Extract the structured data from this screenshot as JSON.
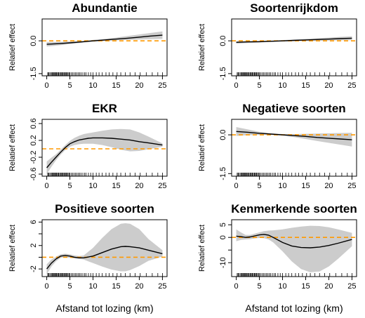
{
  "colors": {
    "band": "#cccccc",
    "line": "#000000",
    "reference": "#ff9900",
    "frame": "#000000"
  },
  "chart_data": [
    {
      "type": "line",
      "title": "Abundantie",
      "xlabel": "",
      "ylabel": "Relatief effect",
      "xlim": [
        -1,
        26
      ],
      "ylim": [
        -1.6,
        1.0
      ],
      "xticks": [
        0,
        5,
        10,
        15,
        20,
        25
      ],
      "xtick_labels": [
        "0",
        "5",
        "10",
        "15",
        "20",
        "25"
      ],
      "yticks": [
        -1.5,
        0.0
      ],
      "ytick_labels": [
        "-1.5",
        "0.0"
      ],
      "reference_line": 0,
      "x": [
        0,
        2.5,
        5,
        7.5,
        10,
        12.5,
        15,
        17.5,
        20,
        22.5,
        25
      ],
      "y": [
        -0.16,
        -0.13,
        -0.09,
        -0.05,
        0.0,
        0.04,
        0.08,
        0.12,
        0.17,
        0.22,
        0.26
      ],
      "lower": [
        -0.26,
        -0.21,
        -0.15,
        -0.09,
        -0.04,
        -0.01,
        0.02,
        0.04,
        0.06,
        0.08,
        0.09
      ],
      "upper": [
        -0.05,
        -0.05,
        -0.03,
        -0.01,
        0.04,
        0.09,
        0.15,
        0.22,
        0.29,
        0.36,
        0.43
      ],
      "rug": [
        0.2,
        0.4,
        0.5,
        0.8,
        1.0,
        1.2,
        1.3,
        1.5,
        1.7,
        1.8,
        2.0,
        2.1,
        2.3,
        2.5,
        2.6,
        2.8,
        3.0,
        3.2,
        3.4,
        3.5,
        3.7,
        3.9,
        4.0,
        4.2,
        4.4,
        4.6,
        4.8,
        5.0,
        5.3,
        5.6,
        5.9,
        6.2,
        6.5,
        6.8,
        7.1,
        7.4,
        7.8,
        8.2,
        8.5,
        9.0,
        9.5,
        10.0,
        10.7,
        11.3,
        12.0,
        12.8,
        13.5,
        14.3,
        15.2,
        16.0,
        17.0,
        18.0,
        19.1,
        20.2,
        21.5,
        22.8,
        24.0,
        25.0
      ]
    },
    {
      "type": "line",
      "title": "Soortenrijkdom",
      "xlabel": "",
      "ylabel": "Relatief effect",
      "xlim": [
        -1,
        26
      ],
      "ylim": [
        -1.6,
        1.0
      ],
      "xticks": [
        0,
        5,
        10,
        15,
        20,
        25
      ],
      "xtick_labels": [
        "0",
        "5",
        "10",
        "15",
        "20",
        "25"
      ],
      "yticks": [
        -1.5,
        0.0
      ],
      "ytick_labels": [
        "-1.5",
        "0.0"
      ],
      "reference_line": 0,
      "x": [
        0,
        2.5,
        5,
        7.5,
        10,
        12.5,
        15,
        17.5,
        20,
        22.5,
        25
      ],
      "y": [
        -0.07,
        -0.05,
        -0.04,
        -0.02,
        0.0,
        0.02,
        0.04,
        0.06,
        0.08,
        0.1,
        0.12
      ],
      "lower": [
        -0.13,
        -0.1,
        -0.08,
        -0.05,
        -0.03,
        -0.02,
        -0.01,
        0.0,
        0.01,
        0.02,
        0.03
      ],
      "upper": [
        -0.01,
        0.0,
        0.0,
        0.01,
        0.03,
        0.06,
        0.09,
        0.12,
        0.15,
        0.18,
        0.21
      ],
      "rug": [
        0.2,
        0.4,
        0.5,
        0.8,
        1.0,
        1.2,
        1.3,
        1.5,
        1.7,
        1.8,
        2.0,
        2.1,
        2.3,
        2.5,
        2.6,
        2.8,
        3.0,
        3.2,
        3.4,
        3.5,
        3.7,
        3.9,
        4.0,
        4.2,
        4.4,
        4.6,
        4.8,
        5.0,
        5.3,
        5.6,
        5.9,
        6.2,
        6.5,
        6.8,
        7.1,
        7.4,
        7.8,
        8.2,
        8.5,
        9.0,
        9.5,
        10.0,
        10.7,
        11.3,
        12.0,
        12.8,
        13.5,
        14.3,
        15.2,
        16.0,
        17.0,
        18.0,
        19.1,
        20.2,
        21.5,
        22.8,
        24.0,
        25.0
      ]
    },
    {
      "type": "line",
      "title": "EKR",
      "xlabel": "",
      "ylabel": "Relatief effect",
      "xlim": [
        -1,
        26
      ],
      "ylim": [
        -0.65,
        0.7
      ],
      "xticks": [
        0,
        5,
        10,
        15,
        20,
        25
      ],
      "xtick_labels": [
        "0",
        "5",
        "10",
        "15",
        "20",
        "25"
      ],
      "yticks": [
        -0.6,
        -0.2,
        0.2,
        0.6
      ],
      "ytick_labels": [
        "-0.6",
        "-0.2",
        "0.2",
        "0.6"
      ],
      "reference_line": 0,
      "x": [
        0,
        1,
        2,
        3,
        4,
        5,
        6,
        7,
        8,
        9,
        10,
        12,
        14,
        16,
        18,
        20,
        22,
        25
      ],
      "y": [
        -0.45,
        -0.32,
        -0.2,
        -0.08,
        0.03,
        0.12,
        0.17,
        0.21,
        0.23,
        0.25,
        0.26,
        0.26,
        0.25,
        0.23,
        0.21,
        0.17,
        0.14,
        0.09
      ],
      "lower": [
        -0.6,
        -0.43,
        -0.27,
        -0.14,
        -0.03,
        0.05,
        0.09,
        0.11,
        0.12,
        0.12,
        0.12,
        0.09,
        0.04,
        -0.02,
        -0.06,
        -0.05,
        -0.01,
        0.05
      ],
      "upper": [
        -0.3,
        -0.21,
        -0.13,
        -0.02,
        0.09,
        0.19,
        0.26,
        0.31,
        0.35,
        0.37,
        0.39,
        0.43,
        0.46,
        0.47,
        0.46,
        0.39,
        0.29,
        0.13
      ],
      "rug": [
        0.2,
        0.4,
        0.5,
        0.8,
        1.0,
        1.2,
        1.3,
        1.5,
        1.7,
        1.8,
        2.0,
        2.1,
        2.3,
        2.5,
        2.6,
        2.8,
        3.0,
        3.2,
        3.4,
        3.5,
        3.7,
        3.9,
        4.0,
        4.2,
        4.4,
        4.6,
        4.8,
        5.0,
        5.3,
        5.6,
        5.9,
        6.2,
        6.5,
        6.8,
        7.1,
        7.4,
        7.8,
        8.2,
        8.5,
        9.0,
        9.5,
        10.0,
        10.7,
        11.3,
        12.0,
        12.8,
        13.5,
        14.3,
        15.2,
        16.0,
        17.0,
        18.0,
        19.1,
        20.2,
        21.5,
        22.8,
        24.0,
        25.0
      ]
    },
    {
      "type": "line",
      "title": "Negatieve soorten",
      "xlabel": "",
      "ylabel": "Relatief effect",
      "xlim": [
        -1,
        26
      ],
      "ylim": [
        -1.6,
        0.6
      ],
      "xticks": [
        0,
        5,
        10,
        15,
        20,
        25
      ],
      "xtick_labels": [
        "0",
        "5",
        "10",
        "15",
        "20",
        "25"
      ],
      "yticks": [
        -1.5,
        0.0
      ],
      "ytick_labels": [
        "-1.5",
        "0.0"
      ],
      "reference_line": 0,
      "x": [
        0,
        2.5,
        5,
        7.5,
        10,
        12.5,
        15,
        17.5,
        20,
        22.5,
        25
      ],
      "y": [
        0.13,
        0.1,
        0.06,
        0.03,
        0.0,
        -0.03,
        -0.06,
        -0.1,
        -0.13,
        -0.16,
        -0.19
      ],
      "lower": [
        -0.04,
        -0.01,
        0.0,
        0.0,
        -0.03,
        -0.09,
        -0.16,
        -0.24,
        -0.31,
        -0.38,
        -0.45
      ],
      "upper": [
        0.3,
        0.21,
        0.12,
        0.06,
        0.03,
        0.03,
        0.04,
        0.05,
        0.06,
        0.07,
        0.08
      ],
      "rug": [
        0.2,
        0.4,
        0.5,
        0.8,
        1.0,
        1.2,
        1.3,
        1.5,
        1.7,
        1.8,
        2.0,
        2.1,
        2.3,
        2.5,
        2.6,
        2.8,
        3.0,
        3.2,
        3.4,
        3.5,
        3.7,
        3.9,
        4.0,
        4.2,
        4.4,
        4.6,
        4.8,
        5.0,
        5.3,
        5.6,
        5.9,
        6.2,
        6.5,
        6.8,
        7.1,
        7.4,
        7.8,
        8.2,
        8.5,
        9.0,
        9.5,
        10.0,
        10.7,
        11.3,
        12.0,
        12.8,
        13.5,
        14.3,
        15.2,
        16.0,
        17.0,
        18.0,
        19.1,
        20.2,
        21.5,
        22.8,
        24.0,
        25.0
      ]
    },
    {
      "type": "line",
      "title": "Positieve soorten",
      "xlabel": "Afstand tot lozing (km)",
      "ylabel": "Relatief effect",
      "xlim": [
        -1,
        26
      ],
      "ylim": [
        -3.3,
        6.4
      ],
      "xticks": [
        0,
        5,
        10,
        15,
        20,
        25
      ],
      "xtick_labels": [
        "0",
        "5",
        "10",
        "15",
        "20",
        "25"
      ],
      "yticks": [
        -2,
        2,
        6
      ],
      "ytick_labels": [
        "-2",
        "2",
        "6"
      ],
      "yticks_minor": [
        0,
        4
      ],
      "reference_line": 0,
      "x": [
        0,
        1,
        2,
        3,
        4,
        5,
        6,
        7,
        8,
        10,
        12,
        14,
        16,
        17,
        18,
        20,
        22,
        25
      ],
      "y": [
        -2.0,
        -1.0,
        -0.3,
        0.2,
        0.3,
        0.2,
        0.0,
        -0.1,
        -0.1,
        0.2,
        0.8,
        1.4,
        1.8,
        1.85,
        1.8,
        1.6,
        1.2,
        0.6
      ],
      "lower": [
        -2.9,
        -1.6,
        -0.7,
        -0.1,
        0.0,
        -0.1,
        -0.2,
        -0.3,
        -0.4,
        -1.0,
        -1.6,
        -2.1,
        -2.4,
        -2.4,
        -2.2,
        -1.5,
        -0.6,
        0.1
      ],
      "upper": [
        -1.2,
        -0.4,
        0.1,
        0.5,
        0.6,
        0.5,
        0.3,
        0.2,
        0.3,
        1.6,
        3.3,
        4.8,
        5.7,
        5.8,
        5.7,
        4.8,
        3.1,
        1.2
      ],
      "rug": [
        0.2,
        0.4,
        0.5,
        0.8,
        1.0,
        1.2,
        1.3,
        1.5,
        1.7,
        1.8,
        2.0,
        2.1,
        2.3,
        2.5,
        2.6,
        2.8,
        3.0,
        3.2,
        3.4,
        3.5,
        3.7,
        3.9,
        4.0,
        4.2,
        4.4,
        4.6,
        4.8,
        5.0,
        5.3,
        5.6,
        5.9,
        6.2,
        6.5,
        6.8,
        7.1,
        7.4,
        7.8,
        8.2,
        8.5,
        9.0,
        9.5,
        10.0,
        10.7,
        11.3,
        12.0,
        12.8,
        13.5,
        14.3,
        15.2,
        16.0,
        17.0,
        18.0,
        19.1,
        20.2,
        21.5,
        22.8,
        24.0,
        25.0
      ]
    },
    {
      "type": "line",
      "title": "Kenmerkende soorten",
      "xlabel": "Afstand tot lozing (km)",
      "ylabel": "Relatief effect",
      "xlim": [
        -1,
        26
      ],
      "ylim": [
        -15.5,
        7.0
      ],
      "xticks": [
        0,
        5,
        10,
        15,
        20,
        25
      ],
      "xtick_labels": [
        "0",
        "5",
        "10",
        "15",
        "20",
        "25"
      ],
      "yticks": [
        -10,
        0,
        5
      ],
      "ytick_labels": [
        "-10",
        "0",
        "5"
      ],
      "yticks_minor": [
        -5
      ],
      "reference_line": 0,
      "x": [
        0,
        1,
        2,
        3,
        4,
        5,
        6,
        7,
        8,
        10,
        12,
        14,
        16,
        18,
        20,
        22,
        25
      ],
      "y": [
        0.5,
        0.3,
        0.0,
        0.2,
        0.6,
        1.0,
        1.2,
        0.9,
        0.0,
        -2.0,
        -3.4,
        -4.0,
        -4.1,
        -3.8,
        -3.2,
        -2.3,
        -0.8
      ],
      "lower": [
        -1.5,
        -1.0,
        -0.8,
        -0.7,
        -0.4,
        -0.2,
        -0.3,
        -0.8,
        -2.0,
        -5.5,
        -9.5,
        -12.5,
        -13.8,
        -13.5,
        -11.5,
        -8.5,
        -3.5
      ],
      "upper": [
        3.2,
        2.0,
        1.0,
        1.0,
        1.5,
        2.0,
        2.5,
        2.7,
        2.8,
        3.2,
        3.8,
        4.3,
        4.6,
        4.5,
        4.0,
        3.2,
        1.8
      ],
      "rug": [
        0.2,
        0.4,
        0.5,
        0.8,
        1.0,
        1.2,
        1.3,
        1.5,
        1.7,
        1.8,
        2.0,
        2.1,
        2.3,
        2.5,
        2.6,
        2.8,
        3.0,
        3.2,
        3.4,
        3.5,
        3.7,
        3.9,
        4.0,
        4.2,
        4.4,
        4.6,
        4.8,
        5.0,
        5.3,
        5.6,
        5.9,
        6.2,
        6.5,
        6.8,
        7.1,
        7.4,
        7.8,
        8.2,
        8.5,
        9.0,
        9.5,
        10.0,
        10.7,
        11.3,
        12.0,
        12.8,
        13.5,
        14.3,
        15.2,
        16.0,
        17.0,
        18.0,
        19.1,
        20.2,
        21.5,
        22.8,
        24.0,
        25.0
      ]
    }
  ]
}
